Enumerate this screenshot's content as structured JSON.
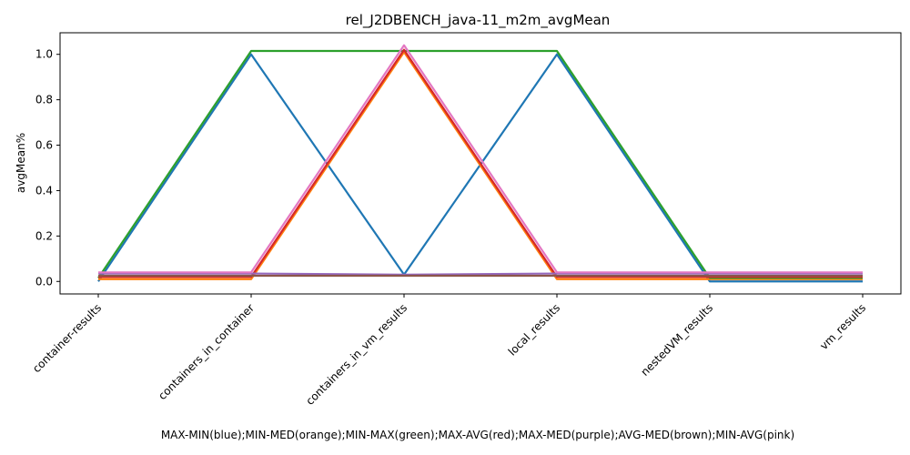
{
  "chart_data": {
    "type": "line",
    "title": "rel_J2DBENCH_java-11_m2m_avgMean",
    "xlabel": "MAX-MIN(blue);MIN-MED(orange);MIN-MAX(green);MAX-AVG(red);MAX-MED(purple);AVG-MED(brown);MIN-AVG(pink)",
    "ylabel": "avgMean%",
    "categories": [
      "container-results",
      "containers_in_container",
      "containers_in_vm_results",
      "local_results",
      "nestedVM_results",
      "vm_results"
    ],
    "ylim": [
      -0.055,
      1.095
    ],
    "yticks": [
      0.0,
      0.2,
      0.4,
      0.6,
      0.8,
      1.0
    ],
    "yticklabels": [
      "0.0",
      "0.2",
      "0.4",
      "0.6",
      "0.8",
      "1.0"
    ],
    "grid": false,
    "series": [
      {
        "name": "MAX-MIN",
        "color": "#1f77b4",
        "values": [
          0.0,
          1.0,
          0.03,
          1.0,
          0.0,
          0.0
        ]
      },
      {
        "name": "MIN-MED",
        "color": "#ff7f0e",
        "values": [
          0.01,
          0.01,
          1.01,
          0.01,
          0.01,
          0.01
        ]
      },
      {
        "name": "MIN-MAX",
        "color": "#2ca02c",
        "values": [
          0.015,
          1.015,
          1.015,
          1.015,
          0.015,
          0.015
        ]
      },
      {
        "name": "MAX-AVG",
        "color": "#d62728",
        "values": [
          0.02,
          0.02,
          1.02,
          0.02,
          0.02,
          0.02
        ]
      },
      {
        "name": "MAX-MED",
        "color": "#9467bd",
        "values": [
          0.035,
          0.035,
          0.03,
          0.035,
          0.035,
          0.035
        ]
      },
      {
        "name": "AVG-MED",
        "color": "#8c564b",
        "values": [
          0.025,
          0.025,
          0.025,
          0.025,
          0.025,
          0.025
        ]
      },
      {
        "name": "MIN-AVG",
        "color": "#e377c2",
        "values": [
          0.04,
          0.04,
          1.04,
          0.04,
          0.04,
          0.04
        ]
      }
    ]
  }
}
